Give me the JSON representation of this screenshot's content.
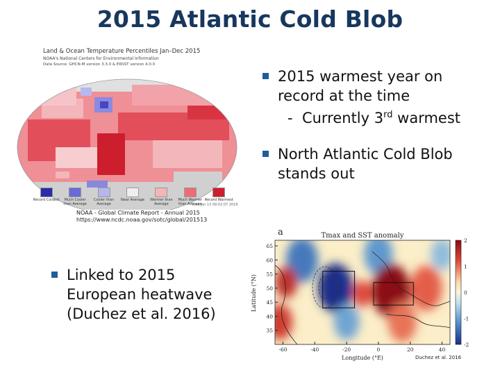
{
  "slide": {
    "title": "2015 Atlantic Cold Blob",
    "bullets_right": [
      {
        "text": "2015 warmest year on record at the time",
        "sub_dash": "-",
        "sub_text": "Currently 3",
        "sub_sup": "rd",
        "sub_tail": " warmest"
      },
      {
        "text": "North Atlantic Cold Blob stands out"
      }
    ],
    "bullet_left": "Linked to 2015 European heatwave (Duchez et al. 2016)",
    "map_caption_line1": "NOAA - Global Climate Report - Annual 2015",
    "map_caption_line2": "https://www.ncdc.noaa.gov/sotc/global/201513",
    "heatmap_caption": "Duchez et al. 2016"
  },
  "map": {
    "title": "Land & Ocean Temperature Percentiles Jan–Dec 2015",
    "subtitle1": "NOAA's National Centers for Environmental Information",
    "subtitle2": "Data Source: GHCN-M version 3.3.0 & ERSST version 4.0.0",
    "version_note": "Wed Jan 13 09:02:07 2016",
    "legend": [
      {
        "label": "Record Coldest",
        "color": "#2c2ca6"
      },
      {
        "label": "Much Cooler than Average",
        "color": "#6a6ad8"
      },
      {
        "label": "Cooler than Average",
        "color": "#b6b6ec"
      },
      {
        "label": "Near Average",
        "color": "#eeeeee"
      },
      {
        "label": "Warmer than Average",
        "color": "#f4b4b8"
      },
      {
        "label": "Much Warmer than Average",
        "color": "#ea6e78"
      },
      {
        "label": "Record Warmest",
        "color": "#cc1e2c"
      }
    ]
  },
  "chart_data": {
    "type": "heatmap",
    "panel_label": "a",
    "title": "Tmax and SST anomaly",
    "xlabel": "Longitude (°E)",
    "ylabel": "Latitude (°N)",
    "xlim": [
      -65,
      45
    ],
    "ylim": [
      30,
      67
    ],
    "xticks": [
      -60,
      -40,
      -20,
      0,
      20,
      40
    ],
    "yticks": [
      35,
      40,
      45,
      50,
      55,
      60,
      65
    ],
    "colorbar_ticks": [
      2,
      1,
      0,
      -1,
      -2
    ],
    "colorbar_range": [
      -2,
      2
    ],
    "boxes": [
      {
        "name": "cold",
        "lon": [
          -35,
          -15
        ],
        "lat": [
          43,
          56
        ]
      },
      {
        "name": "warm",
        "lon": [
          -3,
          22
        ],
        "lat": [
          44,
          52
        ]
      }
    ],
    "anomaly_blobs": [
      {
        "lon": -27,
        "lat": 50,
        "value": -2.0,
        "radius": 11
      },
      {
        "lon": -48,
        "lat": 60,
        "value": -1.2,
        "radius": 10
      },
      {
        "lon": -20,
        "lat": 38,
        "value": -0.8,
        "radius": 8
      },
      {
        "lon": 0,
        "lat": 62,
        "value": -0.9,
        "radius": 9
      },
      {
        "lon": 8,
        "lat": 49,
        "value": 2.0,
        "radius": 12
      },
      {
        "lon": -10,
        "lat": 48,
        "value": 1.0,
        "radius": 6
      },
      {
        "lon": 30,
        "lat": 50,
        "value": 0.9,
        "radius": 10
      },
      {
        "lon": -58,
        "lat": 52,
        "value": 1.4,
        "radius": 7
      },
      {
        "lon": -62,
        "lat": 38,
        "value": 1.2,
        "radius": 8
      },
      {
        "lon": 15,
        "lat": 38,
        "value": 0.8,
        "radius": 9
      },
      {
        "lon": 40,
        "lat": 62,
        "value": -0.6,
        "radius": 7
      }
    ]
  }
}
